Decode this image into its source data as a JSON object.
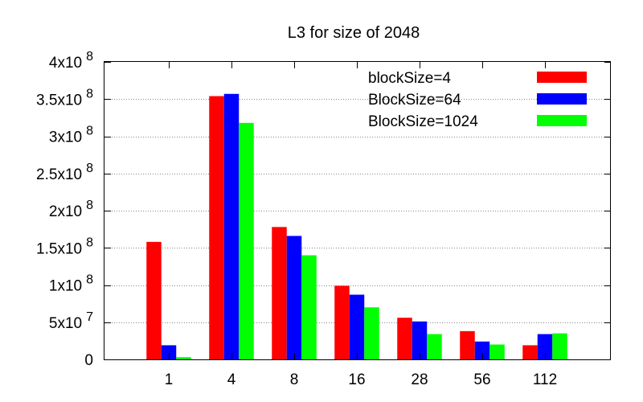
{
  "chart_data": {
    "type": "bar",
    "title": "L3 for size of 2048",
    "xlabel": "",
    "ylabel": "",
    "categories": [
      "1",
      "4",
      "8",
      "16",
      "28",
      "56",
      "112"
    ],
    "series": [
      {
        "name": "blockSize=4",
        "color": "#ff0000",
        "values": [
          158000000,
          354000000,
          178000000,
          99000000,
          56000000,
          38000000,
          19000000
        ]
      },
      {
        "name": "BlockSize=64",
        "color": "#0000ff",
        "values": [
          19000000,
          357000000,
          166000000,
          87000000,
          51000000,
          24000000,
          34000000
        ]
      },
      {
        "name": "BlockSize=1024",
        "color": "#00ff00",
        "values": [
          3000000,
          318000000,
          140000000,
          70000000,
          34000000,
          20000000,
          35000000
        ]
      }
    ],
    "ylim": [
      0,
      400000000
    ],
    "y_ticks": [
      {
        "value": 0,
        "base": "0",
        "exp": ""
      },
      {
        "value": 50000000,
        "base": "5x10",
        "exp": "7"
      },
      {
        "value": 100000000,
        "base": "1x10",
        "exp": "8"
      },
      {
        "value": 150000000,
        "base": "1.5x10",
        "exp": "8"
      },
      {
        "value": 200000000,
        "base": "2x10",
        "exp": "8"
      },
      {
        "value": 250000000,
        "base": "2.5x10",
        "exp": "8"
      },
      {
        "value": 300000000,
        "base": "3x10",
        "exp": "8"
      },
      {
        "value": 350000000,
        "base": "3.5x10",
        "exp": "8"
      },
      {
        "value": 400000000,
        "base": "4x10",
        "exp": "8"
      }
    ],
    "grid": "horizontal dotted",
    "legend_position": "top-right"
  }
}
